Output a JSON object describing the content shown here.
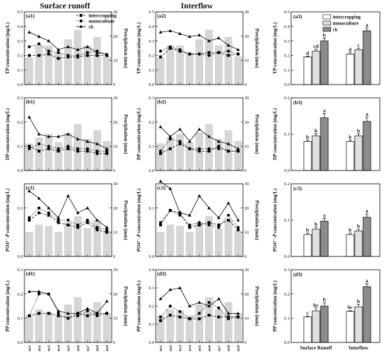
{
  "headers": {
    "col1": "Surface runoff",
    "col2": "Interflow"
  },
  "legend": {
    "intercropping": "intercropping",
    "monoculture": "monoculture",
    "ck": "ck"
  },
  "events": [
    "events1",
    "events2",
    "events3",
    "events4",
    "events5",
    "events6",
    "events7",
    "events8",
    "events9"
  ],
  "chart_data": [
    {
      "type": "line",
      "id": "a1",
      "panel_label": "(a1)",
      "ylabel": "TP concentration (mg/L)",
      "y2label": "Precipitation (mm)",
      "ylim": [
        0,
        0.5
      ],
      "yticks": [
        0,
        0.1,
        0.2,
        0.3,
        0.4,
        0.5
      ],
      "y2lim": [
        0,
        30
      ],
      "y2ticks": [
        0,
        10,
        20,
        30
      ],
      "precipitation": [
        11,
        16,
        16,
        13,
        18.5,
        22.5,
        16,
        19.5,
        11.5
      ],
      "series": [
        {
          "name": "intercropping",
          "style": "square-dash",
          "values": [
            0.2,
            0.2,
            0.21,
            0.18,
            0.19,
            0.19,
            0.2,
            0.2,
            0.2
          ]
        },
        {
          "name": "monoculture",
          "style": "circle-dot",
          "values": [
            0.26,
            0.28,
            0.23,
            0.22,
            0.2,
            0.2,
            0.22,
            0.23,
            0.2
          ]
        },
        {
          "name": "ck",
          "style": "triangle-solid",
          "values": [
            0.36,
            0.33,
            0.3,
            0.24,
            0.26,
            0.24,
            0.26,
            0.22,
            0.21
          ]
        }
      ]
    },
    {
      "type": "line",
      "id": "a2",
      "panel_label": "(a2)",
      "ylabel": "TP concentration (mg/L)",
      "y2label": "Precipitation (mm)",
      "ylim": [
        0,
        0.5
      ],
      "yticks": [
        0,
        0.1,
        0.2,
        0.3,
        0.4,
        0.5
      ],
      "y2lim": [
        0,
        30
      ],
      "y2ticks": [
        0,
        10,
        20,
        30
      ],
      "precipitation": [
        11,
        16,
        16,
        13,
        18.5,
        22.5,
        16,
        19.5,
        11.5
      ],
      "series": [
        {
          "name": "intercropping",
          "style": "square-dash",
          "values": [
            0.19,
            0.25,
            0.23,
            0.21,
            0.21,
            0.22,
            0.22,
            0.2,
            0.21
          ]
        },
        {
          "name": "monoculture",
          "style": "circle-dot",
          "values": [
            0.23,
            0.26,
            0.24,
            0.21,
            0.21,
            0.2,
            0.22,
            0.23,
            0.21
          ]
        },
        {
          "name": "ck",
          "style": "triangle-solid",
          "values": [
            0.36,
            0.37,
            0.35,
            0.33,
            0.34,
            0.3,
            0.32,
            0.27,
            0.24
          ]
        }
      ]
    },
    {
      "type": "bar",
      "id": "a3",
      "panel_label": "(a3)",
      "ylabel": "TP concentration (mg/L)",
      "ylim": [
        0,
        0.5
      ],
      "yticks": [
        0,
        0.1,
        0.2,
        0.3,
        0.4,
        0.5
      ],
      "groups": [
        "Surface Runoff",
        "Interflow"
      ],
      "series": [
        {
          "name": "intercropping",
          "values": [
            0.19,
            0.21
          ],
          "errors": [
            0.005,
            0.008
          ],
          "letters": [
            "d",
            "d"
          ]
        },
        {
          "name": "monoculture",
          "values": [
            0.23,
            0.24
          ],
          "errors": [
            0.012,
            0.01
          ],
          "letters": [
            "cd",
            "c"
          ]
        },
        {
          "name": "ck",
          "values": [
            0.3,
            0.37
          ],
          "errors": [
            0.02,
            0.02
          ],
          "letters": [
            "b",
            "a"
          ]
        }
      ]
    },
    {
      "type": "line",
      "id": "b1",
      "panel_label": "(b1)",
      "ylabel": "DP concentration (mg/L)",
      "y2label": "Precipitation (mm)",
      "ylim": [
        0,
        0.3
      ],
      "yticks": [
        0,
        0.1,
        0.2,
        0.3
      ],
      "y2lim": [
        0,
        30
      ],
      "y2ticks": [
        0,
        10,
        20,
        30
      ],
      "precipitation": [
        11,
        13.5,
        15,
        11.5,
        15.5,
        19,
        13,
        16.5,
        12
      ],
      "series": [
        {
          "name": "intercropping",
          "style": "square-dash",
          "values": [
            0.1,
            0.08,
            0.09,
            0.08,
            0.09,
            0.08,
            0.08,
            0.07,
            0.07
          ]
        },
        {
          "name": "monoculture",
          "style": "circle-dot",
          "values": [
            0.09,
            0.11,
            0.1,
            0.09,
            0.1,
            0.09,
            0.09,
            0.08,
            0.08
          ]
        },
        {
          "name": "ck",
          "style": "triangle-solid",
          "values": [
            0.22,
            0.15,
            0.14,
            0.14,
            0.15,
            0.13,
            0.12,
            0.11,
            0.09
          ]
        }
      ]
    },
    {
      "type": "line",
      "id": "b2",
      "panel_label": "(b2)",
      "ylabel": "DP concentration (mg/L)",
      "y2label": "Precipitation (mm)",
      "ylim": [
        0,
        0.3
      ],
      "yticks": [
        0,
        0.1,
        0.2,
        0.3
      ],
      "y2lim": [
        0,
        30
      ],
      "y2ticks": [
        0,
        10,
        20,
        30
      ],
      "precipitation": [
        11,
        13.5,
        15,
        11.5,
        15.5,
        19,
        13,
        16.5,
        12
      ],
      "series": [
        {
          "name": "intercropping",
          "style": "square-dash",
          "values": [
            0.07,
            0.09,
            0.11,
            0.09,
            0.08,
            0.08,
            0.1,
            0.08,
            0.08
          ]
        },
        {
          "name": "monoculture",
          "style": "circle-dot",
          "values": [
            0.08,
            0.13,
            0.12,
            0.09,
            0.09,
            0.09,
            0.09,
            0.08,
            0.08
          ]
        },
        {
          "name": "ck",
          "style": "triangle-solid",
          "values": [
            0.18,
            0.14,
            0.17,
            0.12,
            0.17,
            0.14,
            0.12,
            0.11,
            0.09
          ]
        }
      ]
    },
    {
      "type": "bar",
      "id": "b3",
      "panel_label": "(b3)",
      "ylabel": "DP concentration (mg/L)",
      "ylim": [
        0,
        0.2
      ],
      "yticks": [
        0,
        0.1,
        0.2
      ],
      "groups": [
        "Surface Runoff",
        "Interflow"
      ],
      "series": [
        {
          "name": "intercropping",
          "values": [
            0.08,
            0.08
          ],
          "errors": [
            0.004,
            0.004
          ],
          "letters": [
            "b",
            "b"
          ]
        },
        {
          "name": "monoculture",
          "values": [
            0.095,
            0.095
          ],
          "errors": [
            0.006,
            0.006
          ],
          "letters": [
            "b",
            "b"
          ]
        },
        {
          "name": "ck",
          "values": [
            0.145,
            0.135
          ],
          "errors": [
            0.012,
            0.012
          ],
          "letters": [
            "a",
            "a"
          ]
        }
      ]
    },
    {
      "type": "line",
      "id": "c1",
      "panel_label": "(c1)",
      "ylabel": "PO4³⁻-P concentration (mg/L)",
      "y2label": "Precipitation (mm)",
      "ylim": [
        0,
        0.15
      ],
      "yticks": [
        0,
        0.1
      ],
      "y2lim": [
        0,
        30
      ],
      "y2ticks": [
        0,
        10,
        20,
        30
      ],
      "precipitation": [
        10,
        13,
        12.5,
        10,
        14,
        16.5,
        11.5,
        15,
        10.5
      ],
      "series": [
        {
          "name": "intercropping",
          "style": "square-dash",
          "values": [
            0.075,
            0.09,
            0.085,
            0.07,
            0.065,
            0.06,
            0.07,
            0.055,
            0.05
          ]
        },
        {
          "name": "monoculture",
          "style": "circle-dot",
          "values": [
            0.08,
            0.1,
            0.09,
            0.075,
            0.075,
            0.065,
            0.075,
            0.06,
            0.055
          ]
        },
        {
          "name": "ck",
          "style": "triangle-solid",
          "values": [
            0.135,
            0.12,
            0.1,
            0.08,
            0.125,
            0.09,
            0.1,
            0.075,
            0.06
          ]
        }
      ]
    },
    {
      "type": "line",
      "id": "c2",
      "panel_label": "(c2)",
      "ylabel": "PO4³⁻-P concentration (mg/L)",
      "y2label": "Precipitation (mm)",
      "ylim": [
        0,
        0.15
      ],
      "yticks": [
        0,
        0.1
      ],
      "y2lim": [
        0,
        30
      ],
      "y2ticks": [
        0,
        10,
        20,
        30
      ],
      "precipitation": [
        10,
        13,
        12.5,
        10,
        14,
        16.5,
        11.5,
        15,
        10.5
      ],
      "series": [
        {
          "name": "intercropping",
          "style": "square-dash",
          "values": [
            0.065,
            0.095,
            0.09,
            0.06,
            0.065,
            0.07,
            0.065,
            0.075,
            0.055
          ]
        },
        {
          "name": "monoculture",
          "style": "circle-dot",
          "values": [
            0.07,
            0.095,
            0.085,
            0.065,
            0.07,
            0.065,
            0.06,
            0.085,
            0.06
          ]
        },
        {
          "name": "ck",
          "style": "triangle-solid",
          "values": [
            0.155,
            0.14,
            0.09,
            0.085,
            0.125,
            0.1,
            0.08,
            0.11,
            0.075
          ]
        }
      ]
    },
    {
      "type": "bar",
      "id": "c3",
      "panel_label": "(c3)",
      "ylabel": "PO4³⁻-P concentration (mg/L)",
      "ylim": [
        0,
        0.2
      ],
      "yticks": [
        0,
        0.1,
        0.2
      ],
      "groups": [
        "Surface Runoff",
        "Interflow"
      ],
      "series": [
        {
          "name": "intercropping",
          "values": [
            0.06,
            0.06
          ],
          "errors": [
            0.004,
            0.004
          ],
          "letters": [
            "b",
            "b"
          ]
        },
        {
          "name": "monoculture",
          "values": [
            0.075,
            0.07
          ],
          "errors": [
            0.006,
            0.005
          ],
          "letters": [
            "b",
            "b"
          ]
        },
        {
          "name": "ck",
          "values": [
            0.097,
            0.108
          ],
          "errors": [
            0.008,
            0.009
          ],
          "letters": [
            "a",
            "a"
          ]
        }
      ]
    },
    {
      "type": "line",
      "id": "d1",
      "panel_label": "(d1)",
      "ylabel": "PP concentration (mg/L)",
      "y2label": "Precipitation (mm)",
      "ylim": [
        0,
        0.3
      ],
      "yticks": [
        0,
        0.1,
        0.2,
        0.3
      ],
      "y2lim": [
        0,
        30
      ],
      "y2ticks": [
        0,
        10,
        20,
        30
      ],
      "precipitation": [
        11,
        13.5,
        12.5,
        10.5,
        15.5,
        18.5,
        12.5,
        16.5,
        12
      ],
      "series": [
        {
          "name": "intercropping",
          "style": "square-dash",
          "values": [
            0.11,
            0.12,
            0.12,
            0.11,
            0.1,
            0.12,
            0.11,
            0.12,
            0.12
          ]
        },
        {
          "name": "monoculture",
          "style": "circle-dot",
          "values": [
            0.11,
            0.2,
            0.2,
            0.12,
            0.1,
            0.11,
            0.13,
            0.11,
            0.12
          ]
        },
        {
          "name": "ck",
          "style": "triangle-solid",
          "values": [
            0.21,
            0.21,
            0.2,
            0.13,
            0.12,
            0.12,
            0.14,
            0.12,
            0.17
          ]
        }
      ]
    },
    {
      "type": "line",
      "id": "d2",
      "panel_label": "(d2)",
      "ylabel": "PP concentration (mg/L)",
      "y2label": "Precipitation (mm)",
      "ylim": [
        0,
        0.4
      ],
      "yticks": [
        0,
        0.1,
        0.2,
        0.3,
        0.4
      ],
      "y2lim": [
        0,
        30
      ],
      "y2ticks": [
        0,
        10,
        20,
        30
      ],
      "precipitation": [
        11,
        13.5,
        13,
        11,
        15.5,
        18.5,
        13.5,
        16.5,
        12
      ],
      "series": [
        {
          "name": "intercropping",
          "style": "square-dash",
          "values": [
            0.12,
            0.15,
            0.14,
            0.13,
            0.13,
            0.15,
            0.14,
            0.14,
            0.14
          ]
        },
        {
          "name": "monoculture",
          "style": "circle-dot",
          "values": [
            0.14,
            0.2,
            0.17,
            0.13,
            0.16,
            0.22,
            0.19,
            0.13,
            0.14
          ]
        },
        {
          "name": "ck",
          "style": "triangle-solid",
          "values": [
            0.24,
            0.29,
            0.3,
            0.2,
            0.22,
            0.2,
            0.24,
            0.16,
            0.16
          ]
        }
      ]
    },
    {
      "type": "bar",
      "id": "d3",
      "panel_label": "(d3)",
      "ylabel": "PP concentration (mg/L)",
      "ylim": [
        0,
        0.3
      ],
      "yticks": [
        0,
        0.1,
        0.2,
        0.3
      ],
      "groups": [
        "Surface Runoff",
        "Interflow"
      ],
      "series": [
        {
          "name": "intercropping",
          "values": [
            0.105,
            0.128
          ],
          "errors": [
            0.004,
            0.004
          ],
          "letters": [
            "c",
            "bc"
          ]
        },
        {
          "name": "monoculture",
          "values": [
            0.13,
            0.147
          ],
          "errors": [
            0.012,
            0.01
          ],
          "letters": [
            "bc",
            "b"
          ]
        },
        {
          "name": "ck",
          "values": [
            0.15,
            0.23
          ],
          "errors": [
            0.014,
            0.012
          ],
          "letters": [
            "b",
            "a"
          ]
        }
      ]
    }
  ]
}
